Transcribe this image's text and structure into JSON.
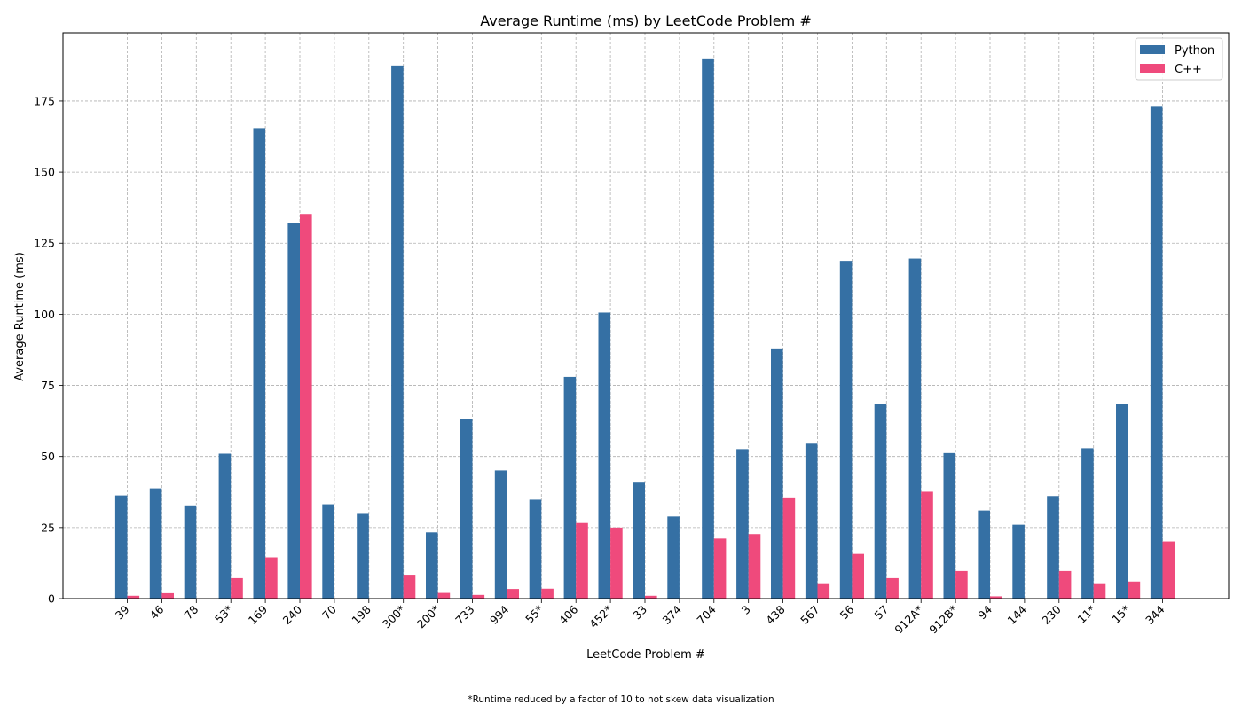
{
  "chart_data": {
    "type": "bar",
    "title": "Average Runtime (ms) by LeetCode Problem #",
    "xlabel": "LeetCode Problem #",
    "ylabel": "Average Runtime (ms)",
    "footnote": "*Runtime reduced by a factor of 10 to not skew data visualization",
    "ylim": [
      0,
      199
    ],
    "yticks": [
      0,
      25,
      50,
      75,
      100,
      125,
      150,
      175
    ],
    "grid": true,
    "legend_position": "top-right",
    "categories": [
      "39",
      "46",
      "78",
      "53*",
      "169",
      "240",
      "70",
      "198",
      "300*",
      "200*",
      "733",
      "994",
      "55*",
      "406",
      "452*",
      "33",
      "374",
      "704",
      "3",
      "438",
      "567",
      "56",
      "57",
      "912A*",
      "912B*",
      "94",
      "144",
      "230",
      "11*",
      "15*",
      "344"
    ],
    "series": [
      {
        "name": "Python",
        "color": "#3570a4",
        "values": [
          36.3,
          38.8,
          32.5,
          51.0,
          165.5,
          132.0,
          33.2,
          29.8,
          187.5,
          23.3,
          63.3,
          45.1,
          34.8,
          78.0,
          100.6,
          40.8,
          28.9,
          190.0,
          52.6,
          88.0,
          54.5,
          118.8,
          68.5,
          119.6,
          51.2,
          31.0,
          26.0,
          36.1,
          52.9,
          68.5,
          173.0
        ]
      },
      {
        "name": "C++",
        "color": "#ef4a7c",
        "values": [
          1.0,
          1.9,
          0.0,
          7.2,
          14.5,
          135.3,
          0.0,
          0.0,
          8.4,
          2.0,
          1.3,
          3.4,
          3.5,
          26.6,
          25.0,
          1.0,
          0.0,
          21.1,
          22.7,
          35.6,
          5.4,
          15.7,
          7.2,
          37.6,
          9.7,
          0.8,
          0.0,
          9.7,
          5.4,
          6.0,
          20.1
        ]
      }
    ]
  }
}
